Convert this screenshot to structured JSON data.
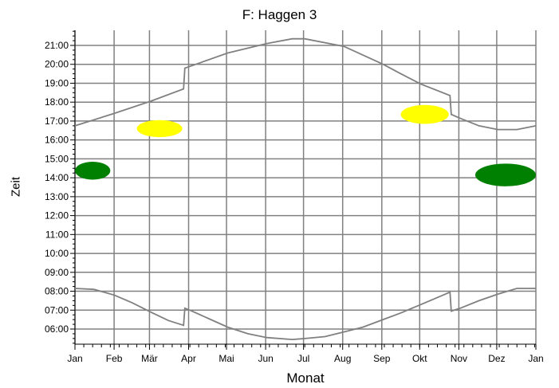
{
  "chart_data": {
    "type": "line",
    "title": "F: Haggen 3",
    "xlabel": "Monat",
    "ylabel": "Zeit",
    "x_ticks": [
      "Jan",
      "Feb",
      "Mär",
      "Apr",
      "Mai",
      "Jun",
      "Jul",
      "Aug",
      "Sep",
      "Okt",
      "Nov",
      "Dez",
      "Jan"
    ],
    "y_ticks": [
      "06:00",
      "07:00",
      "08:00",
      "09:00",
      "10:00",
      "11:00",
      "12:00",
      "13:00",
      "14:00",
      "15:00",
      "16:00",
      "17:00",
      "18:00",
      "19:00",
      "20:00",
      "21:00"
    ],
    "xlim_days": [
      0,
      365
    ],
    "ylim_hours": [
      5.2,
      21.8
    ],
    "grid": true,
    "series": [
      {
        "role": "sunset",
        "color": "#808080",
        "points": [
          [
            0,
            16.75
          ],
          [
            31,
            17.4
          ],
          [
            60,
            18.05
          ],
          [
            86,
            18.7
          ],
          [
            87,
            19.8
          ],
          [
            100,
            20.1
          ],
          [
            121,
            20.6
          ],
          [
            152,
            21.1
          ],
          [
            172,
            21.35
          ],
          [
            182,
            21.35
          ],
          [
            213,
            20.95
          ],
          [
            244,
            20.0
          ],
          [
            258,
            19.5
          ],
          [
            274,
            18.95
          ],
          [
            297,
            18.35
          ],
          [
            298,
            17.35
          ],
          [
            305,
            17.15
          ],
          [
            320,
            16.75
          ],
          [
            335,
            16.55
          ],
          [
            350,
            16.55
          ],
          [
            365,
            16.75
          ]
        ]
      },
      {
        "role": "sunrise",
        "color": "#808080",
        "points": [
          [
            0,
            8.15
          ],
          [
            15,
            8.1
          ],
          [
            31,
            7.8
          ],
          [
            45,
            7.4
          ],
          [
            60,
            6.9
          ],
          [
            74,
            6.45
          ],
          [
            86,
            6.2
          ],
          [
            87,
            7.1
          ],
          [
            91,
            7.0
          ],
          [
            106,
            6.55
          ],
          [
            121,
            6.1
          ],
          [
            137,
            5.75
          ],
          [
            152,
            5.55
          ],
          [
            172,
            5.45
          ],
          [
            182,
            5.5
          ],
          [
            198,
            5.6
          ],
          [
            213,
            5.85
          ],
          [
            228,
            6.1
          ],
          [
            244,
            6.5
          ],
          [
            258,
            6.85
          ],
          [
            274,
            7.3
          ],
          [
            297,
            7.95
          ],
          [
            298,
            6.95
          ],
          [
            305,
            7.1
          ],
          [
            320,
            7.5
          ],
          [
            335,
            7.85
          ],
          [
            350,
            8.15
          ],
          [
            365,
            8.15
          ]
        ]
      }
    ],
    "markers": [
      {
        "color": "#008000",
        "day_range": [
          0,
          28
        ],
        "hour_range": [
          13.9,
          14.85
        ]
      },
      {
        "color": "#ffff00",
        "day_range": [
          49,
          85
        ],
        "hour_range": [
          16.15,
          17.05
        ]
      },
      {
        "color": "#ffff00",
        "day_range": [
          258,
          296
        ],
        "hour_range": [
          16.85,
          17.85
        ]
      },
      {
        "color": "#008000",
        "day_range": [
          317,
          365
        ],
        "hour_range": [
          13.55,
          14.75
        ]
      }
    ]
  }
}
